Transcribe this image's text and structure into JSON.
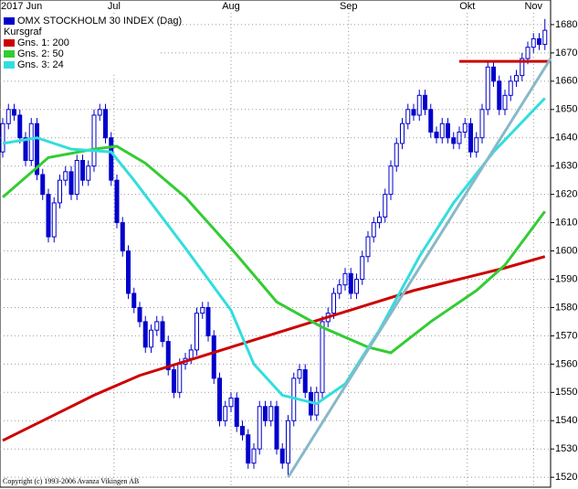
{
  "chart_data": {
    "type": "candlestick",
    "title": "OMX STOCKHOLM 30 INDEX (Dag)",
    "candle_label": "Kursgraf",
    "copyright": "Copyright (c) 1993-2006 Avanza Vikingen AB",
    "candle_color": "#0000cc",
    "month_labels": [
      {
        "label": "2017 Jun",
        "index": 0
      },
      {
        "label": "Jul",
        "index": 19.5
      },
      {
        "label": "Aug",
        "index": 40
      },
      {
        "label": "Sep",
        "index": 60.6
      },
      {
        "label": "Okt",
        "index": 81.4
      },
      {
        "label": "Nov",
        "index": 93
      }
    ],
    "ohlc": {
      "open": [
        1635,
        1645,
        1650,
        1648,
        1640,
        1632,
        1645,
        1627,
        1620,
        1605,
        1617,
        1625,
        1628,
        1620,
        1632,
        1625,
        1630,
        1648,
        1650,
        1640,
        1625,
        1610,
        1600,
        1585,
        1580,
        1575,
        1566,
        1572,
        1575,
        1568,
        1558,
        1550,
        1560,
        1562,
        1565,
        1578,
        1580,
        1570,
        1555,
        1540,
        1545,
        1548,
        1538,
        1535,
        1525,
        1530,
        1545,
        1540,
        1545,
        1530,
        1525,
        1540,
        1555,
        1558,
        1550,
        1542,
        1550,
        1575,
        1578,
        1585,
        1588,
        1592,
        1585,
        1590,
        1598,
        1605,
        1610,
        1612,
        1620,
        1630,
        1638,
        1645,
        1650,
        1648,
        1655,
        1650,
        1642,
        1640,
        1645,
        1640,
        1638,
        1642,
        1645,
        1635,
        1640,
        1650,
        1665,
        1660,
        1650,
        1655,
        1660,
        1662,
        1668,
        1672,
        1675,
        1673
      ],
      "high": [
        1647,
        1652,
        1652,
        1650,
        1642,
        1647,
        1647,
        1629,
        1622,
        1619,
        1627,
        1630,
        1630,
        1634,
        1634,
        1632,
        1650,
        1652,
        1652,
        1642,
        1627,
        1612,
        1602,
        1587,
        1582,
        1577,
        1574,
        1577,
        1577,
        1570,
        1560,
        1562,
        1564,
        1567,
        1580,
        1582,
        1582,
        1572,
        1557,
        1547,
        1550,
        1550,
        1540,
        1537,
        1532,
        1547,
        1547,
        1547,
        1547,
        1532,
        1542,
        1557,
        1560,
        1560,
        1552,
        1552,
        1577,
        1580,
        1587,
        1590,
        1594,
        1594,
        1592,
        1600,
        1607,
        1612,
        1614,
        1622,
        1632,
        1640,
        1647,
        1652,
        1652,
        1657,
        1657,
        1652,
        1644,
        1647,
        1647,
        1642,
        1644,
        1647,
        1647,
        1642,
        1652,
        1667,
        1667,
        1662,
        1657,
        1662,
        1664,
        1670,
        1674,
        1677,
        1677,
        1682
      ],
      "low": [
        1633,
        1643,
        1646,
        1638,
        1630,
        1630,
        1625,
        1618,
        1603,
        1603,
        1615,
        1623,
        1618,
        1618,
        1623,
        1623,
        1628,
        1646,
        1638,
        1623,
        1608,
        1598,
        1583,
        1578,
        1573,
        1564,
        1564,
        1570,
        1566,
        1556,
        1548,
        1548,
        1558,
        1560,
        1563,
        1576,
        1568,
        1553,
        1538,
        1538,
        1543,
        1536,
        1533,
        1523,
        1523,
        1528,
        1538,
        1538,
        1528,
        1523,
        1520,
        1538,
        1553,
        1548,
        1540,
        1540,
        1548,
        1573,
        1576,
        1583,
        1586,
        1583,
        1583,
        1588,
        1596,
        1603,
        1608,
        1610,
        1618,
        1628,
        1636,
        1643,
        1646,
        1646,
        1648,
        1640,
        1638,
        1638,
        1638,
        1636,
        1636,
        1640,
        1633,
        1633,
        1638,
        1648,
        1658,
        1648,
        1648,
        1653,
        1658,
        1660,
        1666,
        1670,
        1671,
        1671
      ],
      "close": [
        1645,
        1650,
        1648,
        1640,
        1632,
        1645,
        1627,
        1620,
        1605,
        1617,
        1625,
        1628,
        1620,
        1632,
        1625,
        1630,
        1648,
        1650,
        1640,
        1625,
        1610,
        1600,
        1585,
        1580,
        1575,
        1566,
        1572,
        1575,
        1568,
        1558,
        1550,
        1560,
        1562,
        1565,
        1578,
        1580,
        1570,
        1555,
        1540,
        1545,
        1548,
        1538,
        1535,
        1525,
        1530,
        1545,
        1540,
        1545,
        1530,
        1525,
        1540,
        1555,
        1558,
        1550,
        1542,
        1550,
        1575,
        1578,
        1585,
        1588,
        1592,
        1585,
        1590,
        1598,
        1605,
        1610,
        1612,
        1620,
        1630,
        1638,
        1645,
        1650,
        1648,
        1655,
        1650,
        1642,
        1640,
        1645,
        1640,
        1638,
        1642,
        1645,
        1635,
        1640,
        1650,
        1665,
        1660,
        1650,
        1655,
        1660,
        1662,
        1668,
        1672,
        1675,
        1673,
        1678
      ]
    },
    "series": [
      {
        "name": "Gns. 1: 200",
        "color": "#cc0000",
        "x": [
          0,
          8,
          16,
          24,
          32,
          40,
          48,
          56,
          64,
          72,
          80,
          88,
          95
        ],
        "values": [
          1533,
          1541,
          1549,
          1556,
          1561,
          1566,
          1571,
          1576,
          1581,
          1586,
          1590,
          1594,
          1598
        ]
      },
      {
        "name": "Gns. 2: 50",
        "color": "#33cc33",
        "x": [
          0,
          8,
          16,
          20,
          25,
          32,
          40,
          48,
          56,
          64,
          68,
          75,
          83,
          88,
          95
        ],
        "values": [
          1619,
          1633,
          1636,
          1637,
          1631,
          1619,
          1601,
          1582,
          1573,
          1566,
          1564,
          1575,
          1586,
          1595,
          1614
        ]
      },
      {
        "name": "Gns. 3: 24",
        "color": "#33dddd",
        "x": [
          0,
          6,
          12,
          19,
          23,
          32,
          40,
          44,
          49,
          55,
          60,
          66,
          73,
          79,
          86,
          95
        ],
        "values": [
          1638,
          1640,
          1636,
          1635,
          1625,
          1601,
          1579,
          1560,
          1549,
          1546,
          1553,
          1572,
          1598,
          1617,
          1635,
          1654
        ]
      }
    ],
    "trendlines": [
      {
        "color": "#cc0000",
        "from": [
          80,
          1667
        ],
        "to": [
          96,
          1667
        ]
      },
      {
        "color": "#88b8c8",
        "from": [
          50,
          1520
        ],
        "to": [
          96,
          1668
        ]
      }
    ],
    "ylim": [
      1516.5,
      1688.7
    ],
    "yticks": [
      1520,
      1530,
      1540,
      1550,
      1560,
      1570,
      1580,
      1590,
      1600,
      1610,
      1620,
      1630,
      1640,
      1650,
      1660,
      1670,
      1680
    ],
    "grid": true
  }
}
